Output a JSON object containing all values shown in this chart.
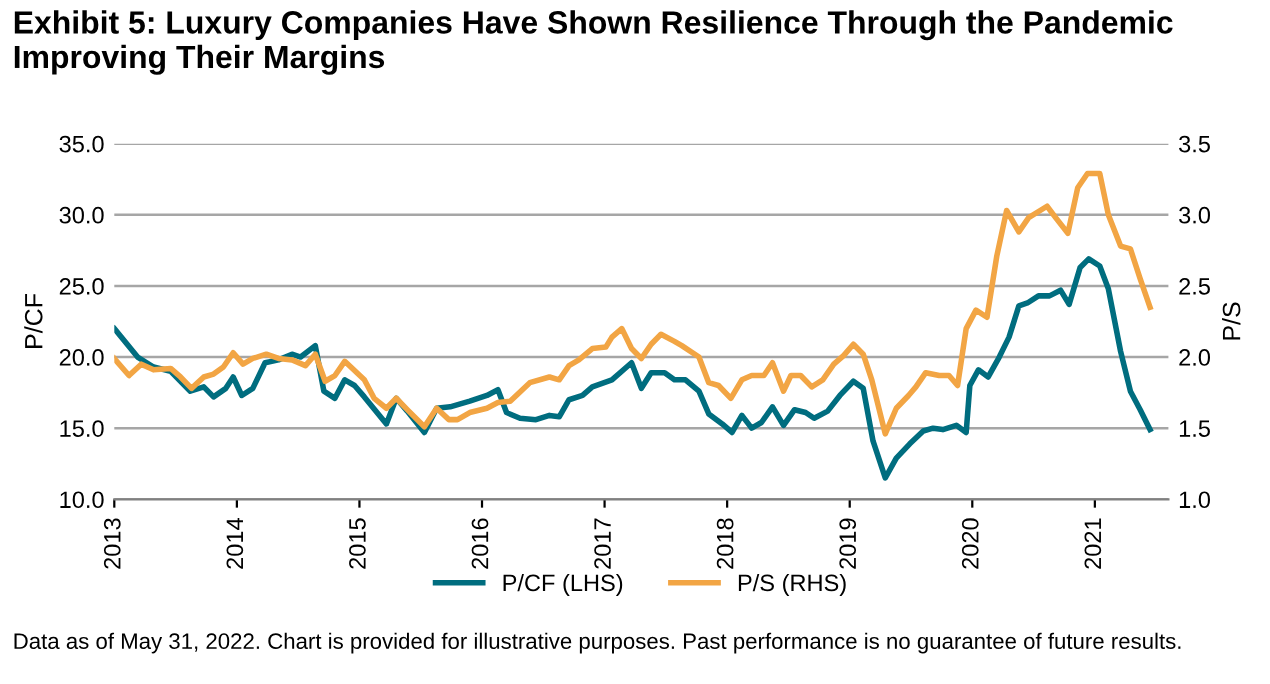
{
  "chart_data": {
    "type": "line",
    "title": "Exhibit 5: Luxury Companies Have Shown Resilience Through the Pandemic Improving Their Margins",
    "ylabel": "P/CF",
    "y2label": "P/S",
    "xlim": [
      2013,
      2021.6
    ],
    "xticks": [
      {
        "value": 2013,
        "label": "2013"
      },
      {
        "value": 2014,
        "label": "2014"
      },
      {
        "value": 2015,
        "label": "2015"
      },
      {
        "value": 2016,
        "label": "2016"
      },
      {
        "value": 2017,
        "label": "2017"
      },
      {
        "value": 2018,
        "label": "2018"
      },
      {
        "value": 2019,
        "label": "2019"
      },
      {
        "value": 2020,
        "label": "2020"
      },
      {
        "value": 2021,
        "label": "2021"
      }
    ],
    "ylim": [
      10.0,
      35.0
    ],
    "yticks": [
      {
        "value": 10,
        "label": "10.0"
      },
      {
        "value": 15,
        "label": "15.0"
      },
      {
        "value": 20,
        "label": "20.0"
      },
      {
        "value": 25,
        "label": "25.0"
      },
      {
        "value": 30,
        "label": "30.0"
      },
      {
        "value": 35,
        "label": "35.0"
      }
    ],
    "y2lim": [
      1.0,
      3.5
    ],
    "y2ticks": [
      {
        "value": 1,
        "label": "1.0"
      },
      1.5,
      {
        "value": 2,
        "label": "2.0"
      },
      2.5,
      {
        "value": 3,
        "label": "3.0"
      },
      3.5
    ],
    "grid": "y",
    "legend": "bottom",
    "line_style": "solid",
    "marker": "none",
    "series": [
      {
        "name": "P/CF (LHS)",
        "color": "#006d7f",
        "x": [
          2013.0,
          2013.19,
          2013.32,
          2013.46,
          2013.62,
          2013.73,
          2013.81,
          2013.91,
          2013.97,
          2014.04,
          2014.13,
          2014.23,
          2014.34,
          2014.45,
          2014.52,
          2014.64,
          2014.71,
          2014.8,
          2014.88,
          2014.96,
          2015.04,
          2015.22,
          2015.3,
          2015.39,
          2015.53,
          2015.63,
          2015.74,
          2015.9,
          2016.04,
          2016.13,
          2016.2,
          2016.31,
          2016.44,
          2016.55,
          2016.63,
          2016.71,
          2016.82,
          2016.9,
          2017.06,
          2017.22,
          2017.3,
          2017.38,
          2017.49,
          2017.57,
          2017.66,
          2017.77,
          2017.85,
          2017.96,
          2018.04,
          2018.12,
          2018.2,
          2018.28,
          2018.37,
          2018.46,
          2018.55,
          2018.64,
          2018.71,
          2018.82,
          2018.92,
          2019.03,
          2019.11,
          2019.19,
          2019.29,
          2019.38,
          2019.49,
          2019.6,
          2019.68,
          2019.76,
          2019.87,
          2019.95,
          2019.98,
          2020.05,
          2020.13,
          2020.22,
          2020.3,
          2020.38,
          2020.45,
          2020.54,
          2020.63,
          2020.72,
          2020.79,
          2020.88,
          2020.95,
          2021.04,
          2021.11,
          2021.21,
          2021.29,
          2021.37,
          2021.45
        ],
        "values": [
          22.0,
          20.0,
          19.3,
          19.0,
          17.6,
          17.9,
          17.2,
          17.8,
          18.6,
          17.3,
          17.8,
          19.6,
          19.8,
          20.2,
          20.0,
          20.8,
          17.6,
          17.1,
          18.4,
          18.0,
          17.2,
          15.3,
          17.1,
          16.2,
          14.7,
          16.4,
          16.5,
          16.9,
          17.3,
          17.7,
          16.1,
          15.7,
          15.6,
          15.9,
          15.8,
          17.0,
          17.3,
          17.9,
          18.4,
          19.6,
          17.8,
          18.9,
          18.9,
          18.4,
          18.4,
          17.6,
          16.0,
          15.3,
          14.7,
          15.9,
          15.0,
          15.4,
          16.5,
          15.2,
          16.3,
          16.1,
          15.7,
          16.2,
          17.3,
          18.3,
          17.8,
          14.1,
          11.5,
          12.9,
          13.9,
          14.8,
          15.0,
          14.9,
          15.2,
          14.7,
          18.0,
          19.1,
          18.6,
          20.0,
          21.4,
          23.6,
          23.8,
          24.3,
          24.3,
          24.7,
          23.7,
          26.3,
          26.9,
          26.4,
          24.8,
          20.4,
          17.6,
          16.3,
          14.9
        ]
      },
      {
        "name": "P/S (RHS)",
        "color": "#f2a544",
        "axis": "y2",
        "x": [
          2013.0,
          2013.12,
          2013.22,
          2013.32,
          2013.46,
          2013.54,
          2013.63,
          2013.73,
          2013.81,
          2013.89,
          2013.97,
          2014.05,
          2014.13,
          2014.24,
          2014.34,
          2014.45,
          2014.56,
          2014.64,
          2014.72,
          2014.8,
          2014.88,
          2015.04,
          2015.12,
          2015.22,
          2015.3,
          2015.39,
          2015.53,
          2015.63,
          2015.73,
          2015.8,
          2015.9,
          2016.04,
          2016.13,
          2016.23,
          2016.39,
          2016.55,
          2016.63,
          2016.71,
          2016.79,
          2016.9,
          2017.01,
          2017.06,
          2017.14,
          2017.22,
          2017.3,
          2017.38,
          2017.46,
          2017.57,
          2017.63,
          2017.77,
          2017.85,
          2017.93,
          2018.03,
          2018.12,
          2018.2,
          2018.3,
          2018.37,
          2018.46,
          2018.52,
          2018.6,
          2018.69,
          2018.78,
          2018.87,
          2018.95,
          2019.03,
          2019.11,
          2019.18,
          2019.29,
          2019.38,
          2019.48,
          2019.54,
          2019.62,
          2019.73,
          2019.81,
          2019.88,
          2019.95,
          2020.03,
          2020.12,
          2020.2,
          2020.28,
          2020.38,
          2020.46,
          2020.61,
          2020.68,
          2020.78,
          2020.86,
          2020.94,
          2021.04,
          2021.11,
          2021.21,
          2021.29,
          2021.37,
          2021.45
        ],
        "values": [
          1.99,
          1.87,
          1.95,
          1.91,
          1.92,
          1.86,
          1.78,
          1.86,
          1.88,
          1.93,
          2.03,
          1.95,
          1.99,
          2.02,
          1.99,
          1.98,
          1.94,
          2.02,
          1.83,
          1.87,
          1.97,
          1.84,
          1.71,
          1.64,
          1.71,
          1.63,
          1.51,
          1.64,
          1.56,
          1.56,
          1.61,
          1.64,
          1.68,
          1.69,
          1.82,
          1.86,
          1.84,
          1.94,
          1.98,
          2.06,
          2.07,
          2.14,
          2.2,
          2.06,
          1.99,
          2.09,
          2.16,
          2.11,
          2.08,
          2.0,
          1.82,
          1.8,
          1.71,
          1.84,
          1.87,
          1.87,
          1.96,
          1.76,
          1.87,
          1.87,
          1.79,
          1.84,
          1.95,
          2.01,
          2.09,
          2.02,
          1.84,
          1.46,
          1.64,
          1.73,
          1.79,
          1.89,
          1.87,
          1.87,
          1.8,
          2.2,
          2.33,
          2.28,
          2.71,
          3.03,
          2.88,
          2.98,
          3.06,
          2.98,
          2.87,
          3.19,
          3.29,
          3.29,
          3.0,
          2.78,
          2.76,
          2.55,
          2.35
        ]
      }
    ],
    "annotations": [
      "Data as of May 31, 2022. Chart is provided for illustrative purposes. Past performance is no guarantee of future results."
    ]
  }
}
